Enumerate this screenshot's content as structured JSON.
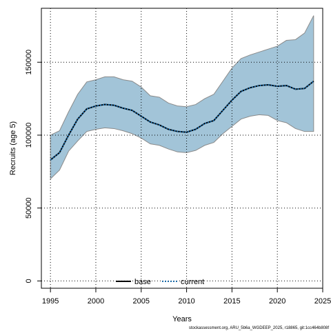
{
  "chart_data": {
    "type": "line",
    "title": "",
    "xlabel": "Years",
    "ylabel": "Recruits (age 5)",
    "xlim": [
      1994,
      2025
    ],
    "ylim": [
      -5000,
      187000
    ],
    "xticks": [
      1995,
      2000,
      2005,
      2010,
      2015,
      2020,
      2025
    ],
    "yticks": [
      0,
      50000,
      100000,
      150000
    ],
    "grid": true,
    "legend_position": "bottom-center",
    "x": [
      1995,
      1996,
      1997,
      1998,
      1999,
      2000,
      2001,
      2002,
      2003,
      2004,
      2005,
      2006,
      2007,
      2008,
      2009,
      2010,
      2011,
      2012,
      2013,
      2014,
      2015,
      2016,
      2017,
      2018,
      2019,
      2020,
      2021,
      2022,
      2023,
      2024
    ],
    "series": [
      {
        "name": "base",
        "style": "solid",
        "color": "#000000",
        "values": [
          83000,
          88000,
          100000,
          111000,
          118000,
          120000,
          121000,
          120500,
          118500,
          117000,
          113000,
          109000,
          107000,
          104000,
          102500,
          102000,
          104000,
          108000,
          110000,
          117000,
          124000,
          130000,
          132500,
          134000,
          134500,
          133500,
          134000,
          131500,
          132000,
          137000
        ]
      },
      {
        "name": "current",
        "style": "dotted",
        "color": "#1a6aa8",
        "values": [
          83000,
          88000,
          100000,
          111000,
          118000,
          120000,
          121000,
          120500,
          118500,
          117000,
          113000,
          109000,
          107000,
          104000,
          102500,
          102000,
          104000,
          108000,
          110000,
          117000,
          124000,
          130000,
          132500,
          134000,
          134500,
          133500,
          134000,
          131500,
          132000,
          137000
        ]
      }
    ],
    "confidence_band": {
      "color": "#a2c4d8",
      "upper": [
        100000,
        103000,
        116000,
        128000,
        136500,
        138000,
        140000,
        140000,
        138000,
        137000,
        133000,
        127000,
        126000,
        122000,
        120000,
        119500,
        121000,
        125000,
        128000,
        137000,
        146000,
        152500,
        155000,
        157000,
        159000,
        161000,
        165000,
        165500,
        170000,
        182000
      ],
      "lower": [
        70000,
        76000,
        89000,
        96000,
        102500,
        104000,
        105000,
        104500,
        103000,
        101000,
        98000,
        94000,
        93000,
        90500,
        88500,
        88000,
        89500,
        93000,
        95000,
        101000,
        106000,
        111000,
        113000,
        114000,
        113500,
        110000,
        108500,
        104500,
        102500,
        102500
      ]
    }
  },
  "footer": "stockassessment.org, ARU_5b6a_WGDEEP_2025, r18865, git:1cc464b808f"
}
